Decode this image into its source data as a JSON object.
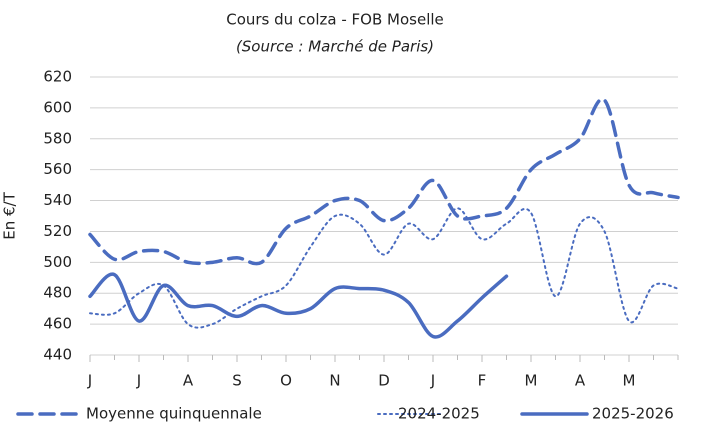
{
  "chart_data": {
    "type": "line",
    "title": "Cours du colza - FOB Moselle",
    "subtitle": "(Source : Marché de Paris)",
    "y_label": "En €/T",
    "categories": [
      "J",
      null,
      "J",
      null,
      "A",
      null,
      "S",
      null,
      "O",
      null,
      "N",
      null,
      "D",
      null,
      "J",
      null,
      "F",
      null,
      "M",
      null,
      "A",
      null,
      "M",
      null,
      null
    ],
    "series": [
      {
        "name": "Moyenne quinquennale",
        "color": "#4a6cc0",
        "dash": "dashed",
        "values": [
          518,
          502,
          507,
          507,
          500,
          500,
          503,
          500,
          522,
          530,
          540,
          540,
          527,
          535,
          553,
          530,
          530,
          535,
          560,
          570,
          580,
          605,
          550,
          545,
          542
        ]
      },
      {
        "name": "2024-2025",
        "color": "#4a6cc0",
        "dash": "dotted",
        "values": [
          467,
          467,
          480,
          485,
          460,
          460,
          470,
          478,
          485,
          510,
          530,
          525,
          505,
          525,
          515,
          535,
          515,
          525,
          532,
          478,
          525,
          520,
          462,
          485,
          483
        ]
      },
      {
        "name": "2025-2026",
        "color": "#4a6cc0",
        "dash": "solid",
        "values": [
          478,
          492,
          462,
          485,
          472,
          472,
          465,
          472,
          467,
          470,
          483,
          483,
          482,
          474,
          452,
          462,
          477,
          491,
          null,
          null,
          null,
          null,
          null,
          null,
          null
        ]
      }
    ],
    "ylim": [
      440,
      620
    ],
    "yticks": [
      440,
      460,
      480,
      500,
      520,
      540,
      560,
      580,
      600,
      620
    ],
    "grid": true,
    "legend": "bottom"
  }
}
